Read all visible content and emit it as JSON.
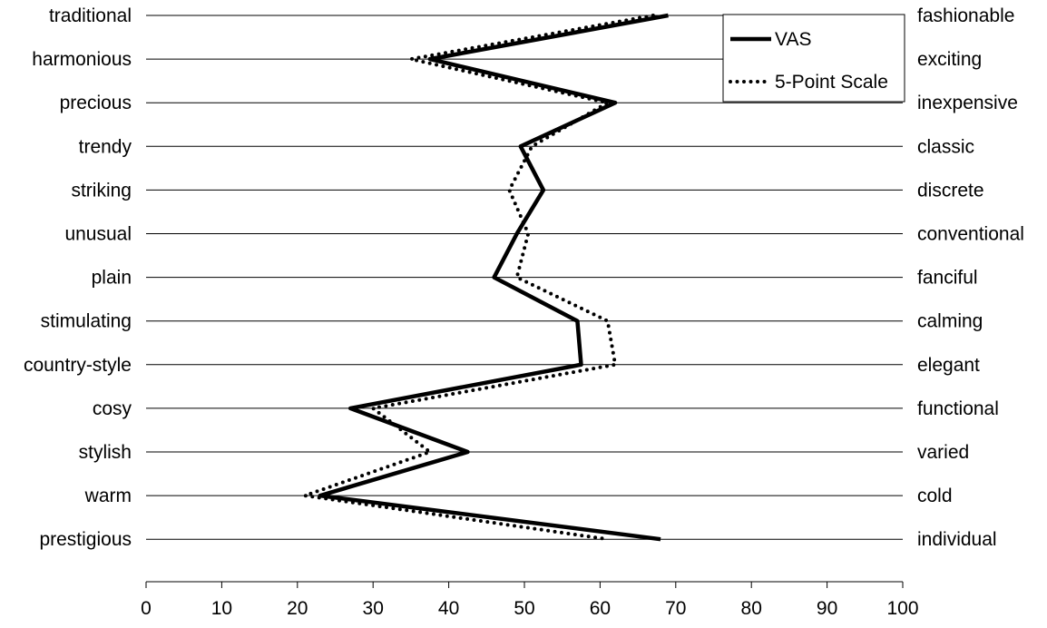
{
  "chart_data": {
    "type": "line",
    "orientation": "horizontal",
    "title": "",
    "xlabel": "",
    "ylabel": "",
    "xlim": [
      0,
      100
    ],
    "x_ticks": [
      0,
      10,
      20,
      30,
      40,
      50,
      60,
      70,
      80,
      90,
      100
    ],
    "grid": true,
    "legend_position": "top-right",
    "left_labels": [
      "traditional",
      "harmonious",
      "precious",
      "trendy",
      "striking",
      "unusual",
      "plain",
      "stimulating",
      "country-style",
      "cosy",
      "stylish",
      "warm",
      "prestigious"
    ],
    "right_labels": [
      "fashionable",
      "exciting",
      "inexpensive",
      "classic",
      "discrete",
      "conventional",
      "fanciful",
      "calming",
      "elegant",
      "functional",
      "varied",
      "cold",
      "individual"
    ],
    "series": [
      {
        "name": "VAS",
        "style": "solid",
        "color": "#000000",
        "values": [
          69,
          37.5,
          62,
          49.5,
          52.5,
          49,
          46,
          57,
          57.5,
          27,
          42.5,
          23,
          68
        ]
      },
      {
        "name": "5-Point Scale",
        "style": "dotted",
        "color": "#000000",
        "values": [
          67,
          35,
          61,
          51,
          48,
          50.5,
          49,
          61,
          62,
          30,
          37.5,
          21,
          61
        ]
      }
    ]
  }
}
